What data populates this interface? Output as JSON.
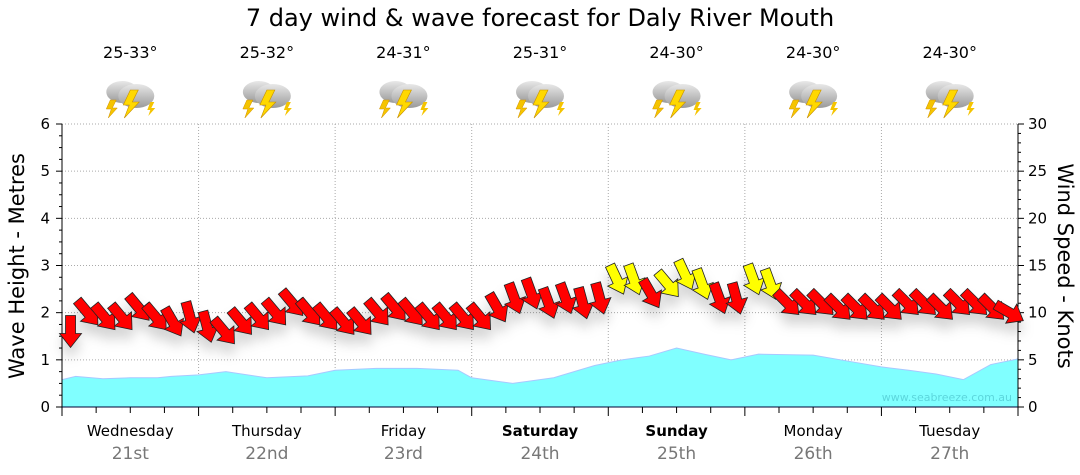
{
  "chart_data": {
    "type": "line",
    "title": "7 day wind & wave forecast for Daly River Mouth",
    "ylabel_left": "Wave Height - Metres",
    "ylabel_right": "Wind Speed - Knots",
    "ylim_left": [
      0,
      6
    ],
    "ylim_right": [
      0,
      30
    ],
    "yticks_left": [
      "0",
      "1",
      "2",
      "3",
      "4",
      "5",
      "6"
    ],
    "yticks_right": [
      "0",
      "5",
      "10",
      "15",
      "20",
      "25",
      "30"
    ],
    "grid": true,
    "watermark": "www.seabreeze.com.au",
    "days": [
      {
        "name": "Wednesday",
        "date": "21st",
        "bold": false,
        "temp": "25-33°",
        "icon": "thunderstorm-icon"
      },
      {
        "name": "Thursday",
        "date": "22nd",
        "bold": false,
        "temp": "25-32°",
        "icon": "thunderstorm-icon"
      },
      {
        "name": "Friday",
        "date": "23rd",
        "bold": false,
        "temp": "24-31°",
        "icon": "thunderstorm-icon"
      },
      {
        "name": "Saturday",
        "date": "24th",
        "bold": true,
        "temp": "25-31°",
        "icon": "thunderstorm-icon"
      },
      {
        "name": "Sunday",
        "date": "25th",
        "bold": true,
        "temp": "24-30°",
        "icon": "thunderstorm-icon"
      },
      {
        "name": "Monday",
        "date": "26th",
        "bold": false,
        "temp": "24-30°",
        "icon": "thunderstorm-icon"
      },
      {
        "name": "Tuesday",
        "date": "27th",
        "bold": false,
        "temp": "24-30°",
        "icon": "thunderstorm-icon"
      }
    ],
    "wave_series": {
      "name": "Wave height (m)",
      "color": "#80ffff",
      "x_days": [
        0,
        0.1,
        0.3,
        0.5,
        0.7,
        0.8,
        1.0,
        1.2,
        1.5,
        1.8,
        2.0,
        2.3,
        2.6,
        2.9,
        3.0,
        3.3,
        3.6,
        3.9,
        4.1,
        4.3,
        4.5,
        4.7,
        4.9,
        5.1,
        5.5,
        5.8,
        6.0,
        6.2,
        6.4,
        6.6,
        6.8,
        7.0
      ],
      "values": [
        0.58,
        0.65,
        0.6,
        0.62,
        0.62,
        0.65,
        0.68,
        0.75,
        0.62,
        0.66,
        0.78,
        0.82,
        0.82,
        0.78,
        0.62,
        0.5,
        0.62,
        0.88,
        1.0,
        1.08,
        1.25,
        1.12,
        1.0,
        1.12,
        1.1,
        0.95,
        0.85,
        0.78,
        0.7,
        0.58,
        0.9,
        1.02
      ]
    },
    "wind_series": {
      "name": "Wind (knots)",
      "interval_hours": 3,
      "strong_threshold": 13,
      "colors": {
        "normal": "#ff0000",
        "strong": "#ffff00"
      },
      "speeds": [
        8,
        10,
        9.5,
        9.5,
        10.5,
        9.5,
        9,
        9.5,
        8.5,
        8,
        9,
        9.5,
        10,
        11,
        10,
        9.5,
        9,
        9,
        10,
        10.5,
        10,
        9.5,
        9.5,
        9.5,
        9.5,
        10.5,
        11.5,
        12,
        11,
        11.5,
        11,
        11.5,
        13.5,
        13.5,
        12,
        13,
        14,
        13,
        11.5,
        11.5,
        13.5,
        13,
        11,
        11,
        11,
        10.5,
        10.5,
        10.5,
        10.5,
        11,
        11,
        10.5,
        11,
        11,
        10.5,
        10
      ],
      "directions_from_deg": [
        0,
        320,
        320,
        320,
        320,
        320,
        330,
        345,
        345,
        320,
        320,
        320,
        320,
        320,
        320,
        320,
        320,
        320,
        320,
        320,
        320,
        320,
        320,
        320,
        320,
        330,
        340,
        340,
        340,
        340,
        345,
        345,
        335,
        340,
        330,
        320,
        335,
        340,
        340,
        345,
        340,
        340,
        315,
        315,
        315,
        315,
        315,
        315,
        315,
        315,
        315,
        315,
        315,
        315,
        315,
        300
      ]
    }
  }
}
